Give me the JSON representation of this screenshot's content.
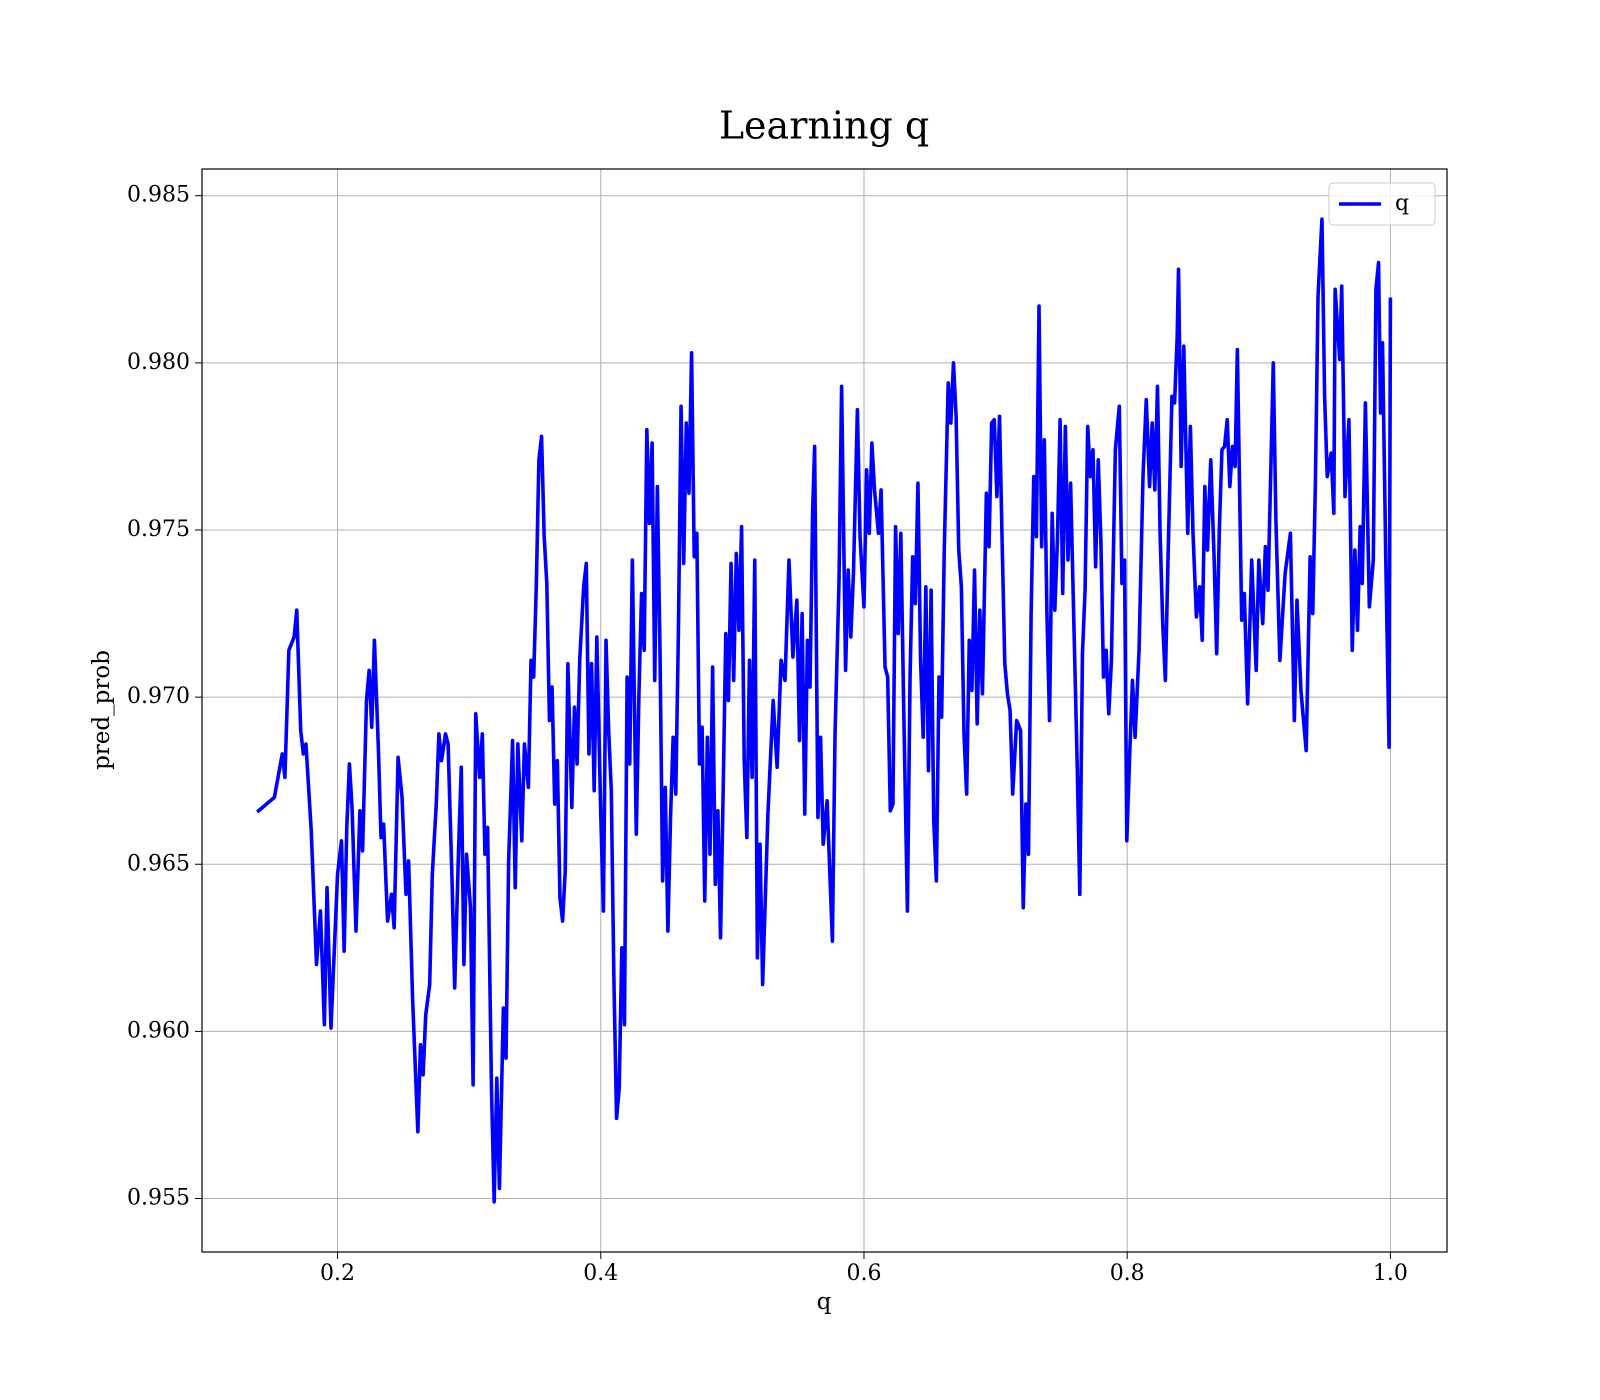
{
  "chart_data": {
    "type": "line",
    "title": "Learning q",
    "xlabel": "q",
    "ylabel": "pred_prob",
    "xlim": [
      0.097,
      1.043
    ],
    "ylim": [
      0.9534,
      0.9858
    ],
    "xticks": [
      0.2,
      0.4,
      0.6,
      0.8,
      {
        "value": 1,
        "label": "1.0"
      }
    ],
    "yticks": [
      0.955,
      {
        "value": 0.96,
        "label": "0.960"
      },
      0.965,
      {
        "value": 0.97,
        "label": "0.970"
      },
      0.975,
      {
        "value": 0.98,
        "label": "0.980"
      },
      0.985
    ],
    "grid": true,
    "legend": "upper right",
    "x": [
      0.14,
      0.152,
      0.158,
      0.16,
      0.163,
      0.167,
      0.169,
      0.172,
      0.174,
      0.176,
      0.18,
      0.184,
      0.187,
      0.19,
      0.192,
      0.195,
      0.2,
      0.203,
      0.205,
      0.207,
      0.209,
      0.211,
      0.214,
      0.217,
      0.219,
      0.222,
      0.224,
      0.226,
      0.228,
      0.231,
      0.233,
      0.235,
      0.238,
      0.241,
      0.243,
      0.246,
      0.249,
      0.252,
      0.254,
      0.257,
      0.259,
      0.261,
      0.263,
      0.265,
      0.267,
      0.27,
      0.272,
      0.275,
      0.277,
      0.279,
      0.282,
      0.284,
      0.287,
      0.289,
      0.292,
      0.294,
      0.296,
      0.298,
      0.301,
      0.303,
      0.305,
      0.308,
      0.31,
      0.312,
      0.314,
      0.317,
      0.319,
      0.321,
      0.323,
      0.326,
      0.328,
      0.33,
      0.333,
      0.335,
      0.337,
      0.34,
      0.342,
      0.345,
      0.347,
      0.349,
      0.351,
      0.353,
      0.355,
      0.357,
      0.359,
      0.361,
      0.363,
      0.365,
      0.367,
      0.369,
      0.371,
      0.373,
      0.375,
      0.378,
      0.38,
      0.382,
      0.384,
      0.387,
      0.389,
      0.391,
      0.393,
      0.395,
      0.397,
      0.4,
      0.402,
      0.404,
      0.406,
      0.408,
      0.41,
      0.412,
      0.414,
      0.416,
      0.418,
      0.42,
      0.422,
      0.424,
      0.427,
      0.429,
      0.431,
      0.433,
      0.435,
      0.437,
      0.439,
      0.441,
      0.443,
      0.445,
      0.447,
      0.449,
      0.451,
      0.453,
      0.455,
      0.457,
      0.459,
      0.461,
      0.463,
      0.465,
      0.467,
      0.469,
      0.471,
      0.473,
      0.475,
      0.477,
      0.479,
      0.481,
      0.483,
      0.485,
      0.487,
      0.489,
      0.491,
      0.493,
      0.495,
      0.497,
      0.499,
      0.501,
      0.503,
      0.505,
      0.507,
      0.509,
      0.511,
      0.513,
      0.515,
      0.517,
      0.519,
      0.521,
      0.523,
      0.527,
      0.531,
      0.534,
      0.537,
      0.54,
      0.543,
      0.546,
      0.549,
      0.551,
      0.553,
      0.555,
      0.557,
      0.559,
      0.561,
      0.5625,
      0.565,
      0.567,
      0.569,
      0.572,
      0.576,
      0.578,
      0.581,
      0.583,
      0.586,
      0.588,
      0.59,
      0.592,
      0.595,
      0.597,
      0.6,
      0.602,
      0.604,
      0.606,
      0.608,
      0.611,
      0.613,
      0.616,
      0.618,
      0.62,
      0.622,
      0.624,
      0.626,
      0.628,
      0.63,
      0.633,
      0.635,
      0.637,
      0.639,
      0.641,
      0.643,
      0.645,
      0.647,
      0.649,
      0.651,
      0.653,
      0.655,
      0.657,
      0.659,
      0.661,
      0.664,
      0.666,
      0.668,
      0.67,
      0.672,
      0.674,
      0.676,
      0.678,
      0.68,
      0.682,
      0.684,
      0.686,
      0.688,
      0.69,
      0.693,
      0.695,
      0.697,
      0.699,
      0.701,
      0.703,
      0.705,
      0.707,
      0.709,
      0.711,
      0.713,
      0.716,
      0.719,
      0.721,
      0.723,
      0.725,
      0.727,
      0.729,
      0.731,
      0.733,
      0.735,
      0.737,
      0.739,
      0.741,
      0.743,
      0.745,
      0.747,
      0.749,
      0.751,
      0.753,
      0.755,
      0.757,
      0.759,
      0.762,
      0.764,
      0.766,
      0.768,
      0.77,
      0.772,
      0.774,
      0.776,
      0.778,
      0.78,
      0.782,
      0.784,
      0.786,
      0.788,
      0.791,
      0.794,
      0.796,
      0.798,
      0.7997,
      0.802,
      0.804,
      0.806,
      0.809,
      0.812,
      0.8145,
      0.817,
      0.819,
      0.821,
      0.823,
      0.825,
      0.827,
      0.829,
      0.831,
      0.834,
      0.836,
      0.838,
      0.839,
      0.841,
      0.843,
      0.846,
      0.848,
      0.85,
      0.8526,
      0.855,
      0.857,
      0.859,
      0.861,
      0.8635,
      0.866,
      0.868,
      0.87,
      0.872,
      0.874,
      0.876,
      0.878,
      0.88,
      0.882,
      0.8837,
      0.887,
      0.889,
      0.8915,
      0.8946,
      0.898,
      0.9,
      0.903,
      0.905,
      0.907,
      0.911,
      0.913,
      0.916,
      0.92,
      0.924,
      0.927,
      0.929,
      0.932,
      0.936,
      0.939,
      0.941,
      0.943,
      0.945,
      0.948,
      0.95,
      0.952,
      0.955,
      0.957,
      0.958,
      0.9615,
      0.963,
      0.9655,
      0.9685,
      0.971,
      0.973,
      0.975,
      0.977,
      0.9786,
      0.981,
      0.984,
      0.987,
      0.989,
      0.991,
      0.9925,
      0.994,
      0.9965,
      0.999,
      1.0
    ],
    "series": [
      {
        "name": "q",
        "color": "#0000ff",
        "values": [
          0.9666,
          0.967,
          0.9683,
          0.9676,
          0.9714,
          0.9718,
          0.9726,
          0.969,
          0.9683,
          0.9686,
          0.966,
          0.962,
          0.9636,
          0.9602,
          0.9643,
          0.9601,
          0.9647,
          0.9657,
          0.9624,
          0.9661,
          0.968,
          0.9667,
          0.963,
          0.9666,
          0.9654,
          0.9699,
          0.9708,
          0.9691,
          0.9717,
          0.9685,
          0.9658,
          0.9662,
          0.9633,
          0.9641,
          0.9631,
          0.9682,
          0.967,
          0.9641,
          0.9651,
          0.961,
          0.959,
          0.957,
          0.9596,
          0.9587,
          0.9605,
          0.9614,
          0.9647,
          0.9668,
          0.9689,
          0.9681,
          0.9689,
          0.9686,
          0.9645,
          0.9613,
          0.9655,
          0.9679,
          0.962,
          0.9653,
          0.9637,
          0.9584,
          0.9695,
          0.9676,
          0.9689,
          0.9653,
          0.9661,
          0.9582,
          0.9549,
          0.9586,
          0.9553,
          0.9607,
          0.9592,
          0.9651,
          0.9687,
          0.9643,
          0.9686,
          0.9657,
          0.9686,
          0.9673,
          0.9711,
          0.9706,
          0.9733,
          0.9771,
          0.9778,
          0.9748,
          0.9734,
          0.9693,
          0.9703,
          0.9668,
          0.9681,
          0.964,
          0.9633,
          0.9648,
          0.971,
          0.9667,
          0.9697,
          0.968,
          0.9711,
          0.9733,
          0.974,
          0.9683,
          0.971,
          0.9672,
          0.9718,
          0.9665,
          0.9636,
          0.9717,
          0.969,
          0.9672,
          0.9615,
          0.9574,
          0.9583,
          0.9625,
          0.9602,
          0.9706,
          0.968,
          0.9741,
          0.9659,
          0.9701,
          0.9731,
          0.9714,
          0.978,
          0.9752,
          0.9776,
          0.9705,
          0.9763,
          0.9714,
          0.9645,
          0.9673,
          0.963,
          0.9664,
          0.9688,
          0.9671,
          0.972,
          0.9787,
          0.974,
          0.9782,
          0.9761,
          0.9803,
          0.9742,
          0.9749,
          0.968,
          0.9691,
          0.9639,
          0.9688,
          0.9653,
          0.9709,
          0.9644,
          0.9666,
          0.9628,
          0.9672,
          0.9719,
          0.9699,
          0.974,
          0.9705,
          0.9743,
          0.972,
          0.9751,
          0.9681,
          0.9658,
          0.9711,
          0.9676,
          0.9741,
          0.9622,
          0.9656,
          0.9614,
          0.9665,
          0.9699,
          0.9679,
          0.9711,
          0.9705,
          0.9741,
          0.9712,
          0.9729,
          0.9687,
          0.9725,
          0.9665,
          0.9717,
          0.9703,
          0.9756,
          0.9775,
          0.9664,
          0.9688,
          0.9656,
          0.9669,
          0.9627,
          0.9689,
          0.9734,
          0.9793,
          0.9708,
          0.9738,
          0.9718,
          0.9737,
          0.9786,
          0.9748,
          0.9727,
          0.9768,
          0.9749,
          0.9776,
          0.9762,
          0.9749,
          0.9762,
          0.9709,
          0.9706,
          0.9666,
          0.9668,
          0.9751,
          0.9719,
          0.9749,
          0.9701,
          0.9636,
          0.9706,
          0.9742,
          0.9728,
          0.9764,
          0.9711,
          0.9688,
          0.9733,
          0.9678,
          0.9732,
          0.9663,
          0.9645,
          0.9706,
          0.9694,
          0.9744,
          0.9794,
          0.9782,
          0.98,
          0.9784,
          0.9744,
          0.9733,
          0.9689,
          0.9671,
          0.9717,
          0.9702,
          0.9738,
          0.9692,
          0.9726,
          0.9701,
          0.9761,
          0.9745,
          0.9782,
          0.9783,
          0.976,
          0.9784,
          0.9746,
          0.971,
          0.9701,
          0.9696,
          0.9671,
          0.9693,
          0.969,
          0.9637,
          0.9668,
          0.9653,
          0.9725,
          0.9766,
          0.9748,
          0.9817,
          0.9745,
          0.9777,
          0.9725,
          0.9693,
          0.9755,
          0.9726,
          0.9747,
          0.9783,
          0.9731,
          0.9781,
          0.9741,
          0.9764,
          0.973,
          0.968,
          0.9641,
          0.9713,
          0.9732,
          0.9781,
          0.9766,
          0.9774,
          0.9739,
          0.9771,
          0.9747,
          0.9706,
          0.9714,
          0.9695,
          0.9711,
          0.9774,
          0.9787,
          0.9734,
          0.9741,
          0.9657,
          0.9684,
          0.9705,
          0.9688,
          0.9714,
          0.9766,
          0.9789,
          0.9763,
          0.9782,
          0.9762,
          0.9793,
          0.9749,
          0.9722,
          0.9705,
          0.9741,
          0.979,
          0.9788,
          0.9808,
          0.9828,
          0.9769,
          0.9805,
          0.9749,
          0.9781,
          0.9749,
          0.9724,
          0.9733,
          0.9717,
          0.9763,
          0.9744,
          0.9771,
          0.9742,
          0.9713,
          0.975,
          0.9774,
          0.9775,
          0.9783,
          0.9763,
          0.9775,
          0.9769,
          0.9804,
          0.9723,
          0.9731,
          0.9698,
          0.9741,
          0.9708,
          0.9741,
          0.9722,
          0.9745,
          0.9732,
          0.98,
          0.9753,
          0.9711,
          0.9737,
          0.9749,
          0.9693,
          0.9729,
          0.9702,
          0.9684,
          0.9742,
          0.9725,
          0.9764,
          0.982,
          0.9843,
          0.979,
          0.9766,
          0.9773,
          0.9755,
          0.9822,
          0.9801,
          0.9823,
          0.976,
          0.9783,
          0.9714,
          0.9744,
          0.972,
          0.9751,
          0.9734,
          0.9788,
          0.9727,
          0.9741,
          0.9822,
          0.983,
          0.9785,
          0.9806,
          0.9741,
          0.9685,
          0.9819
        ]
      }
    ]
  }
}
